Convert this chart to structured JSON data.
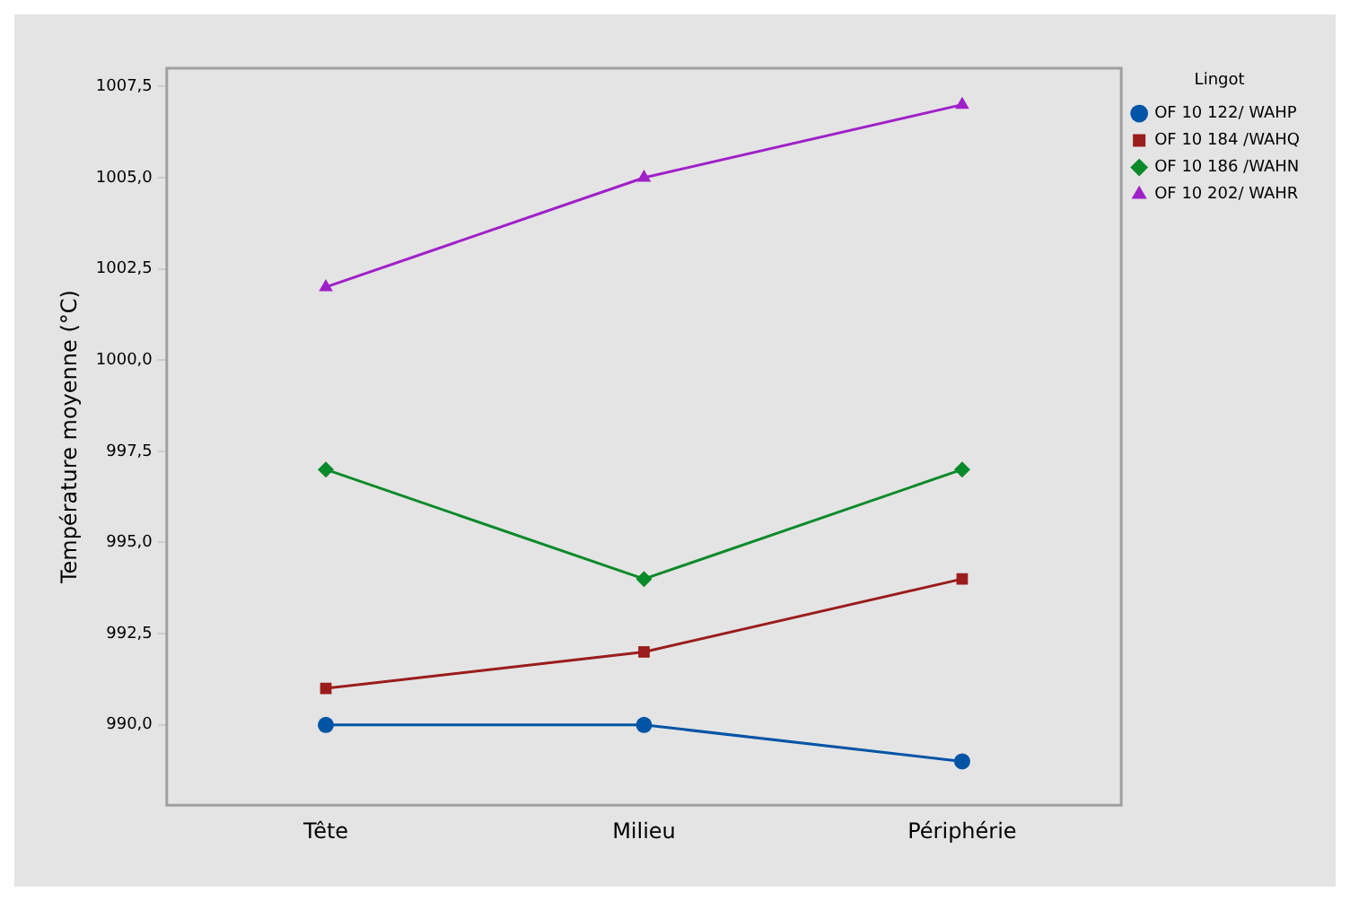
{
  "chart_data": {
    "type": "line",
    "ylabel": "Température moyenne (°C)",
    "legend_title": "Lingot",
    "legend": "top right",
    "categories": [
      "Tête",
      "Milieu",
      "Périphérie"
    ],
    "series": [
      {
        "name": "OF 10 122/ WAHP",
        "color": "#0054a6",
        "marker": "circle",
        "values": [
          990,
          990,
          989
        ]
      },
      {
        "name": "OF 10 184 /WAHQ",
        "color": "#9b1c1c",
        "marker": "square",
        "values": [
          991,
          992,
          994
        ]
      },
      {
        "name": "OF 10 186 /WAHN",
        "color": "#0a8a2a",
        "marker": "diamond",
        "values": [
          997,
          994,
          997
        ]
      },
      {
        "name": "OF 10 202/ WAHR",
        "color": "#a020c8",
        "marker": "triangle",
        "values": [
          1002,
          1005,
          1007
        ]
      }
    ],
    "ylim": [
      987.8,
      1008
    ],
    "yticks": [
      {
        "value": 990,
        "label": "990,0"
      },
      {
        "value": 992.5,
        "label": "992,5"
      },
      {
        "value": 995,
        "label": "995,0"
      },
      {
        "value": 997.5,
        "label": "997,5"
      },
      {
        "value": 1000,
        "label": "1000,0"
      },
      {
        "value": 1002.5,
        "label": "1002,5"
      },
      {
        "value": 1005,
        "label": "1005,0"
      },
      {
        "value": 1007.5,
        "label": "1007,5"
      }
    ],
    "grid": false
  }
}
